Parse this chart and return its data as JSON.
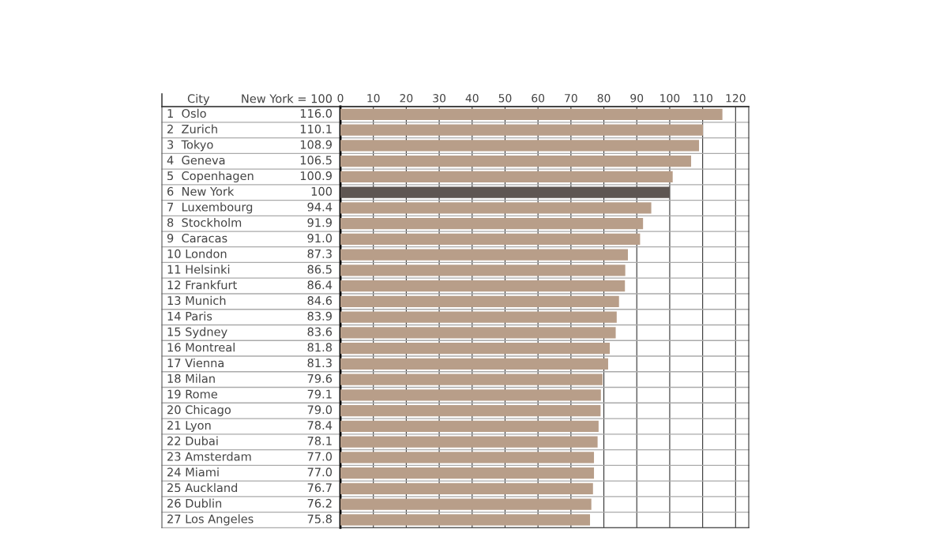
{
  "chart_data": {
    "type": "bar",
    "orientation": "horizontal",
    "categories": [
      "1  Oslo",
      "2  Zurich",
      "3  Tokyo",
      "4  Geneva",
      "5  Copenhagen",
      "6  New York",
      "7  Luxembourg",
      "8  Stockholm",
      "9  Caracas",
      "10 London",
      "11 Helsinki",
      "12 Frankfurt",
      "13 Munich",
      "14 Paris",
      "15 Sydney",
      "16 Montreal",
      "17 Vienna",
      "18 Milan",
      "19 Rome",
      "20 Chicago",
      "21 Lyon",
      "22 Dubai",
      "23 Amsterdam",
      "24 Miami",
      "25 Auckland",
      "26 Dublin",
      "27 Los Angeles"
    ],
    "values": [
      116.0,
      110.1,
      108.9,
      106.5,
      100.9,
      100,
      94.4,
      91.9,
      91.0,
      87.3,
      86.5,
      86.4,
      84.6,
      83.9,
      83.6,
      81.8,
      81.3,
      79.6,
      79.1,
      79.0,
      78.4,
      78.1,
      77.0,
      77.0,
      76.7,
      76.2,
      75.8
    ],
    "value_labels": [
      "116.0",
      "110.1",
      "108.9",
      "106.5",
      "100.9",
      "100",
      "94.4",
      "91.9",
      "91.0",
      "87.3",
      "86.5",
      "86.4",
      "84.6",
      "83.9",
      "83.6",
      "81.8",
      "81.3",
      "79.6",
      "79.1",
      "79.0",
      "78.4",
      "78.1",
      "77.0",
      "77.0",
      "76.7",
      "76.2",
      "75.8"
    ],
    "colors": [
      "#b89e89",
      "#b89e89",
      "#b89e89",
      "#b89e89",
      "#b89e89",
      "#5e5652",
      "#b89e89",
      "#b89e89",
      "#b89e89",
      "#b89e89",
      "#b89e89",
      "#b89e89",
      "#b89e89",
      "#b89e89",
      "#b89e89",
      "#b89e89",
      "#b89e89",
      "#b89e89",
      "#b89e89",
      "#b89e89",
      "#b89e89",
      "#b89e89",
      "#b89e89",
      "#b89e89",
      "#b89e89",
      "#b89e89",
      "#b89e89"
    ],
    "annotations": [
      "City",
      "New York = 100"
    ],
    "xlim": [
      0,
      124
    ],
    "xticks": [
      0,
      10,
      20,
      30,
      40,
      50,
      60,
      70,
      80,
      90,
      100,
      110,
      120
    ],
    "grid": "x"
  }
}
